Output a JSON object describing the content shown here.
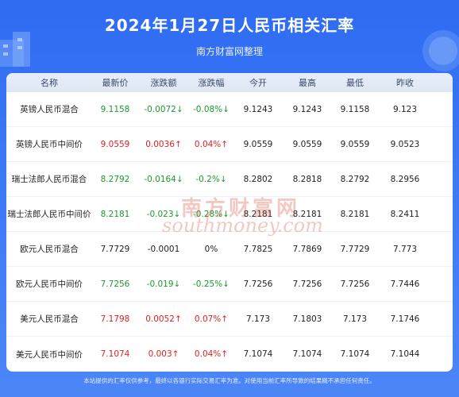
{
  "header": {
    "title": "2024年1月27日人民币相关汇率",
    "subtitle": "南方财富网整理"
  },
  "table": {
    "columns": [
      "名称",
      "最新价",
      "涨跌额",
      "涨跌幅",
      "今开",
      "最高",
      "最低",
      "昨收"
    ],
    "rows": [
      {
        "name": "英镑人民币混合",
        "latest": "9.1158",
        "change": "-0.0072↓",
        "pct": "-0.08%↓",
        "open": "9.1243",
        "high": "9.1243",
        "low": "9.1158",
        "prev": "9.123",
        "trend": "down"
      },
      {
        "name": "英镑人民币中间价",
        "latest": "9.0559",
        "change": "0.0036↑",
        "pct": "0.04%↑",
        "open": "9.0559",
        "high": "9.0559",
        "low": "9.0559",
        "prev": "9.0523",
        "trend": "up"
      },
      {
        "name": "瑞士法郎人民币混合",
        "latest": "8.2792",
        "change": "-0.0164↓",
        "pct": "-0.2%↓",
        "open": "8.2802",
        "high": "8.2818",
        "low": "8.2792",
        "prev": "8.2956",
        "trend": "down"
      },
      {
        "name": "瑞士法郎人民币中间价",
        "latest": "8.2181",
        "change": "-0.023↓",
        "pct": "-0.28%↓",
        "open": "8.2181",
        "high": "8.2181",
        "low": "8.2181",
        "prev": "8.2411",
        "trend": "down"
      },
      {
        "name": "欧元人民币混合",
        "latest": "7.7729",
        "change": "-0.0001",
        "pct": "0%",
        "open": "7.7825",
        "high": "7.7869",
        "low": "7.7729",
        "prev": "7.773",
        "trend": "flat"
      },
      {
        "name": "欧元人民币中间价",
        "latest": "7.7256",
        "change": "-0.019↓",
        "pct": "-0.25%↓",
        "open": "7.7256",
        "high": "7.7256",
        "low": "7.7256",
        "prev": "7.7446",
        "trend": "down"
      },
      {
        "name": "美元人民币混合",
        "latest": "7.1798",
        "change": "0.0052↑",
        "pct": "0.07%↑",
        "open": "7.173",
        "high": "7.1803",
        "low": "7.173",
        "prev": "7.1746",
        "trend": "up"
      },
      {
        "name": "美元人民币中间价",
        "latest": "7.1074",
        "change": "0.003↑",
        "pct": "0.04%↑",
        "open": "7.1074",
        "high": "7.1074",
        "low": "7.1074",
        "prev": "7.1044",
        "trend": "up"
      }
    ]
  },
  "watermark": {
    "cn": "南方财富网",
    "en": "southmoney.com"
  },
  "footer": {
    "note": "本站提供的汇率仅供参考，最终以各银行实际交易汇率为准。对使用当前汇率所导致的结果概不承担任何责任。"
  },
  "colors": {
    "up": "#e02020",
    "down": "#1a9a2e",
    "background": "#2f6bf2"
  }
}
